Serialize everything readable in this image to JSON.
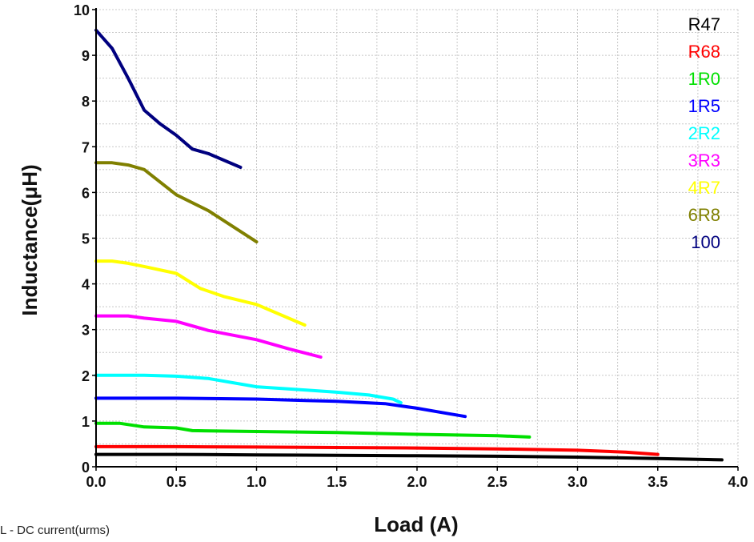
{
  "chart_data": {
    "type": "line",
    "title": "",
    "xlabel": "Load (A)",
    "ylabel": "Inductance(μH)",
    "xlim": [
      0,
      4
    ],
    "ylim": [
      0,
      10
    ],
    "xticks": [
      "0.0",
      "0.5",
      "1.0",
      "1.5",
      "2.0",
      "2.5",
      "3.0",
      "3.5",
      "4.0"
    ],
    "yticks": [
      "0",
      "1",
      "2",
      "3",
      "4",
      "5",
      "6",
      "7",
      "8",
      "9",
      "10"
    ],
    "grid": true,
    "legend_position": "top-right",
    "series": [
      {
        "name": "R47",
        "color": "#000000",
        "points": [
          [
            0,
            0.27
          ],
          [
            0.5,
            0.27
          ],
          [
            1.0,
            0.26
          ],
          [
            1.5,
            0.25
          ],
          [
            2.0,
            0.24
          ],
          [
            2.5,
            0.23
          ],
          [
            3.0,
            0.21
          ],
          [
            3.5,
            0.18
          ],
          [
            3.9,
            0.15
          ]
        ]
      },
      {
        "name": "R68",
        "color": "#ff0000",
        "points": [
          [
            0,
            0.44
          ],
          [
            0.5,
            0.44
          ],
          [
            1.0,
            0.43
          ],
          [
            1.5,
            0.42
          ],
          [
            2.0,
            0.41
          ],
          [
            2.5,
            0.39
          ],
          [
            3.0,
            0.36
          ],
          [
            3.3,
            0.32
          ],
          [
            3.5,
            0.27
          ]
        ]
      },
      {
        "name": "1R0",
        "color": "#00e000",
        "points": [
          [
            0,
            0.95
          ],
          [
            0.15,
            0.95
          ],
          [
            0.3,
            0.87
          ],
          [
            0.5,
            0.85
          ],
          [
            0.6,
            0.79
          ],
          [
            1.0,
            0.77
          ],
          [
            1.5,
            0.75
          ],
          [
            2.0,
            0.71
          ],
          [
            2.5,
            0.68
          ],
          [
            2.7,
            0.65
          ]
        ]
      },
      {
        "name": "1R5",
        "color": "#0000ff",
        "points": [
          [
            0,
            1.5
          ],
          [
            0.5,
            1.5
          ],
          [
            1.0,
            1.48
          ],
          [
            1.5,
            1.43
          ],
          [
            1.8,
            1.38
          ],
          [
            2.0,
            1.28
          ],
          [
            2.2,
            1.16
          ],
          [
            2.3,
            1.1
          ]
        ]
      },
      {
        "name": "2R2",
        "color": "#00ffff",
        "points": [
          [
            0,
            2.0
          ],
          [
            0.3,
            2.0
          ],
          [
            0.5,
            1.98
          ],
          [
            0.7,
            1.93
          ],
          [
            1.0,
            1.75
          ],
          [
            1.3,
            1.68
          ],
          [
            1.5,
            1.63
          ],
          [
            1.7,
            1.57
          ],
          [
            1.85,
            1.48
          ],
          [
            1.9,
            1.4
          ]
        ]
      },
      {
        "name": "3R3",
        "color": "#ff00ff",
        "points": [
          [
            0,
            3.3
          ],
          [
            0.2,
            3.3
          ],
          [
            0.3,
            3.25
          ],
          [
            0.5,
            3.18
          ],
          [
            0.7,
            2.98
          ],
          [
            1.0,
            2.78
          ],
          [
            1.2,
            2.58
          ],
          [
            1.4,
            2.4
          ]
        ]
      },
      {
        "name": "4R7",
        "color": "#ffff00",
        "points": [
          [
            0,
            4.5
          ],
          [
            0.1,
            4.5
          ],
          [
            0.2,
            4.45
          ],
          [
            0.3,
            4.38
          ],
          [
            0.5,
            4.23
          ],
          [
            0.65,
            3.9
          ],
          [
            0.8,
            3.72
          ],
          [
            1.0,
            3.55
          ],
          [
            1.3,
            3.1
          ]
        ]
      },
      {
        "name": "6R8",
        "color": "#808000",
        "points": [
          [
            0,
            6.65
          ],
          [
            0.1,
            6.65
          ],
          [
            0.2,
            6.6
          ],
          [
            0.3,
            6.5
          ],
          [
            0.5,
            5.95
          ],
          [
            0.7,
            5.6
          ],
          [
            1.0,
            4.92
          ]
        ]
      },
      {
        "name": "100",
        "color": "#00007f",
        "points": [
          [
            0,
            9.55
          ],
          [
            0.1,
            9.15
          ],
          [
            0.2,
            8.5
          ],
          [
            0.3,
            7.8
          ],
          [
            0.4,
            7.5
          ],
          [
            0.5,
            7.25
          ],
          [
            0.6,
            6.95
          ],
          [
            0.7,
            6.85
          ],
          [
            0.9,
            6.55
          ]
        ]
      }
    ]
  },
  "footnote": "L - DC current(urms)"
}
